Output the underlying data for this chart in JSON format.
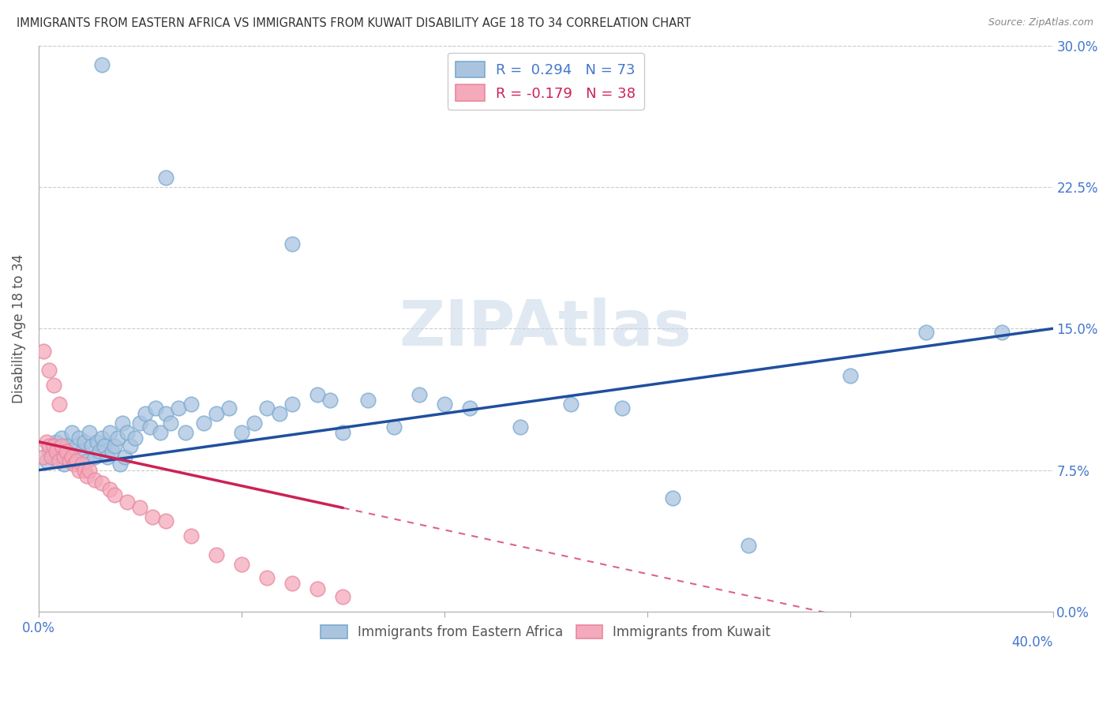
{
  "title": "IMMIGRANTS FROM EASTERN AFRICA VS IMMIGRANTS FROM KUWAIT DISABILITY AGE 18 TO 34 CORRELATION CHART",
  "source": "Source: ZipAtlas.com",
  "ylabel": "Disability Age 18 to 34",
  "xlim": [
    0.0,
    0.4
  ],
  "ylim": [
    0.0,
    0.3
  ],
  "xticks": [
    0.0,
    0.08,
    0.16,
    0.24,
    0.32,
    0.4
  ],
  "yticks": [
    0.0,
    0.075,
    0.15,
    0.225,
    0.3
  ],
  "ytick_labels_right": [
    "0.0%",
    "7.5%",
    "15.0%",
    "22.5%",
    "30.0%"
  ],
  "legend_blue_text": "R =  0.294   N = 73",
  "legend_pink_text": "R = -0.179   N = 38",
  "blue_color": "#AAC4E0",
  "pink_color": "#F4AABA",
  "blue_edge_color": "#7AAAD0",
  "pink_edge_color": "#E888A0",
  "blue_line_color": "#1F4F9E",
  "pink_line_color": "#CC2255",
  "watermark_text": "ZIPAtlas",
  "blue_scatter_x": [
    0.003,
    0.004,
    0.005,
    0.006,
    0.006,
    0.007,
    0.008,
    0.009,
    0.01,
    0.011,
    0.012,
    0.013,
    0.014,
    0.015,
    0.016,
    0.017,
    0.018,
    0.019,
    0.02,
    0.021,
    0.022,
    0.023,
    0.024,
    0.025,
    0.026,
    0.027,
    0.028,
    0.029,
    0.03,
    0.031,
    0.032,
    0.033,
    0.034,
    0.035,
    0.036,
    0.038,
    0.04,
    0.042,
    0.044,
    0.046,
    0.048,
    0.05,
    0.052,
    0.055,
    0.058,
    0.06,
    0.065,
    0.07,
    0.075,
    0.08,
    0.085,
    0.09,
    0.095,
    0.1,
    0.11,
    0.115,
    0.12,
    0.13,
    0.14,
    0.15,
    0.16,
    0.17,
    0.19,
    0.21,
    0.23,
    0.25,
    0.28,
    0.32,
    0.35,
    0.38,
    0.025,
    0.05,
    0.1
  ],
  "blue_scatter_y": [
    0.08,
    0.085,
    0.083,
    0.088,
    0.082,
    0.09,
    0.085,
    0.092,
    0.078,
    0.088,
    0.082,
    0.095,
    0.08,
    0.088,
    0.092,
    0.085,
    0.09,
    0.08,
    0.095,
    0.088,
    0.082,
    0.09,
    0.085,
    0.092,
    0.088,
    0.082,
    0.095,
    0.085,
    0.088,
    0.092,
    0.078,
    0.1,
    0.082,
    0.095,
    0.088,
    0.092,
    0.1,
    0.105,
    0.098,
    0.108,
    0.095,
    0.105,
    0.1,
    0.108,
    0.095,
    0.11,
    0.1,
    0.105,
    0.108,
    0.095,
    0.1,
    0.108,
    0.105,
    0.11,
    0.115,
    0.112,
    0.095,
    0.112,
    0.098,
    0.115,
    0.11,
    0.108,
    0.098,
    0.11,
    0.108,
    0.06,
    0.035,
    0.125,
    0.148,
    0.148,
    0.29,
    0.23,
    0.195
  ],
  "pink_scatter_x": [
    0.002,
    0.003,
    0.004,
    0.005,
    0.006,
    0.007,
    0.008,
    0.009,
    0.01,
    0.011,
    0.012,
    0.013,
    0.014,
    0.015,
    0.016,
    0.017,
    0.018,
    0.019,
    0.02,
    0.022,
    0.025,
    0.028,
    0.03,
    0.035,
    0.04,
    0.045,
    0.05,
    0.06,
    0.07,
    0.08,
    0.09,
    0.1,
    0.11,
    0.12,
    0.002,
    0.004,
    0.006,
    0.008
  ],
  "pink_scatter_y": [
    0.082,
    0.09,
    0.088,
    0.082,
    0.088,
    0.085,
    0.08,
    0.088,
    0.082,
    0.085,
    0.08,
    0.082,
    0.078,
    0.08,
    0.075,
    0.078,
    0.075,
    0.072,
    0.075,
    0.07,
    0.068,
    0.065,
    0.062,
    0.058,
    0.055,
    0.05,
    0.048,
    0.04,
    0.03,
    0.025,
    0.018,
    0.015,
    0.012,
    0.008,
    0.138,
    0.128,
    0.12,
    0.11
  ],
  "pink_line_solid_end": 0.12,
  "pink_line_dash_end": 0.4
}
